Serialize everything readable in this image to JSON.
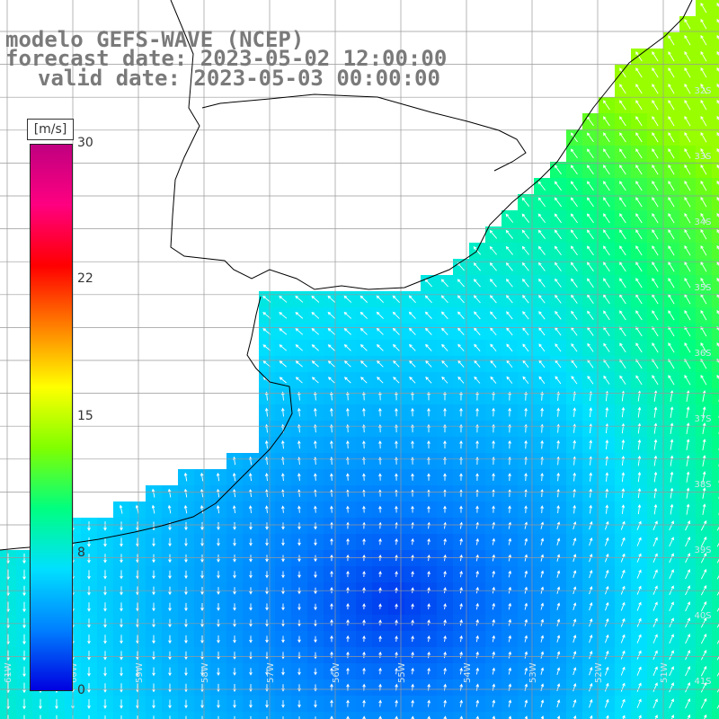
{
  "title": {
    "line1": "modelo GEFS-WAVE (NCEP)",
    "line2": "forecast date: 2023-05-02 12:00:00",
    "line3": "valid date: 2023-05-03 00:00:00"
  },
  "colorbar": {
    "unit": "[m/s]",
    "ticks": [
      "30",
      "22",
      "15",
      "8",
      "0"
    ],
    "min": 0,
    "max": 30,
    "colors": [
      "#0000e0",
      "#0080ff",
      "#00e0ff",
      "#00ff80",
      "#80ff00",
      "#ffff00",
      "#ff8000",
      "#ff0000",
      "#ff0080",
      "#c00080"
    ]
  },
  "grid": {
    "lat_labels": [
      "32S",
      "33S",
      "34S",
      "35S",
      "36S",
      "37S",
      "38S",
      "39S",
      "40S",
      "41S"
    ],
    "lon_labels": [
      "61W",
      "60W",
      "59W",
      "58W",
      "57W",
      "56W",
      "55W",
      "54W",
      "53W",
      "52W",
      "51W"
    ]
  },
  "colors": {
    "land": "#ffffff",
    "coast": "#000000",
    "grid": "#999999",
    "arrow": "#ffffff"
  }
}
